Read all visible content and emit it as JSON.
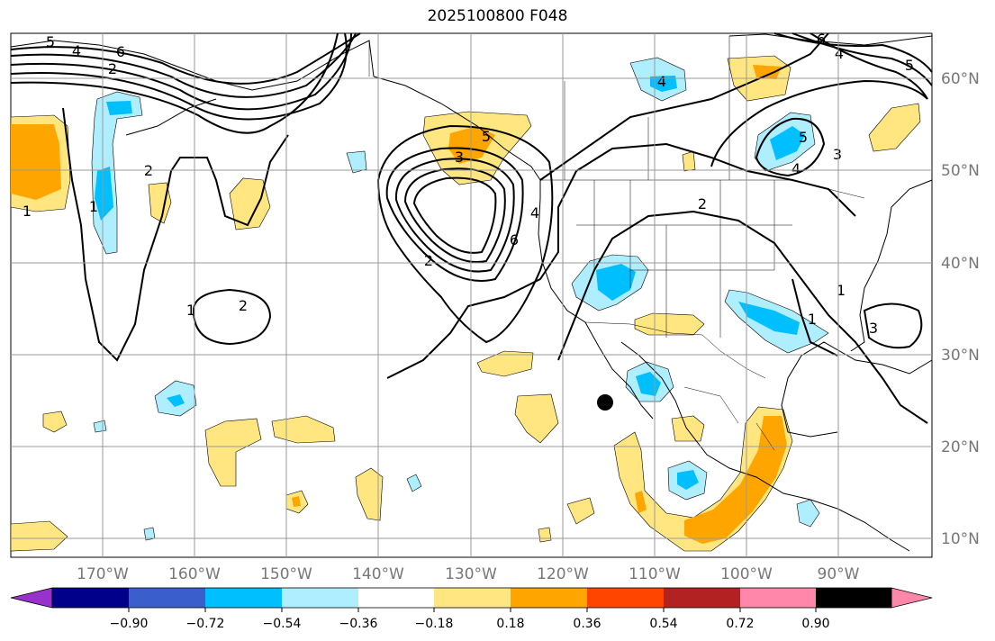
{
  "title": "2025100800 F048",
  "lon_labels": [
    "170°W",
    "160°W",
    "150°W",
    "140°W",
    "130°W",
    "120°W",
    "110°W",
    "100°W",
    "90°W"
  ],
  "lat_labels": [
    "60°N",
    "50°N",
    "40°N",
    "30°N",
    "20°N",
    "10°N"
  ],
  "contour_labels": [
    "5",
    "4",
    "6",
    "2",
    "2",
    "1",
    "1",
    "2",
    "1",
    "2",
    "3",
    "4",
    "5",
    "6",
    "4",
    "6",
    "5",
    "4",
    "3",
    "5",
    "4",
    "3",
    "2",
    "1",
    "1"
  ],
  "colorbar": {
    "ticks": [
      "−0.90",
      "−0.72",
      "−0.54",
      "−0.36",
      "−0.18",
      "0.18",
      "0.36",
      "0.54",
      "0.72",
      "0.90"
    ],
    "colors": [
      "#9932cc",
      "#00008b",
      "#3a5fcd",
      "#00bfff",
      "#afeeff",
      "#ffffff",
      "#ffe680",
      "#ffa500",
      "#ff4500",
      "#b22222",
      "#ff88aa"
    ]
  },
  "shading_colors": {
    "pos1": "#ffe680",
    "pos2": "#ffa500",
    "neg1": "#afeeff",
    "neg2": "#00bfff"
  },
  "marker": "location-dot"
}
